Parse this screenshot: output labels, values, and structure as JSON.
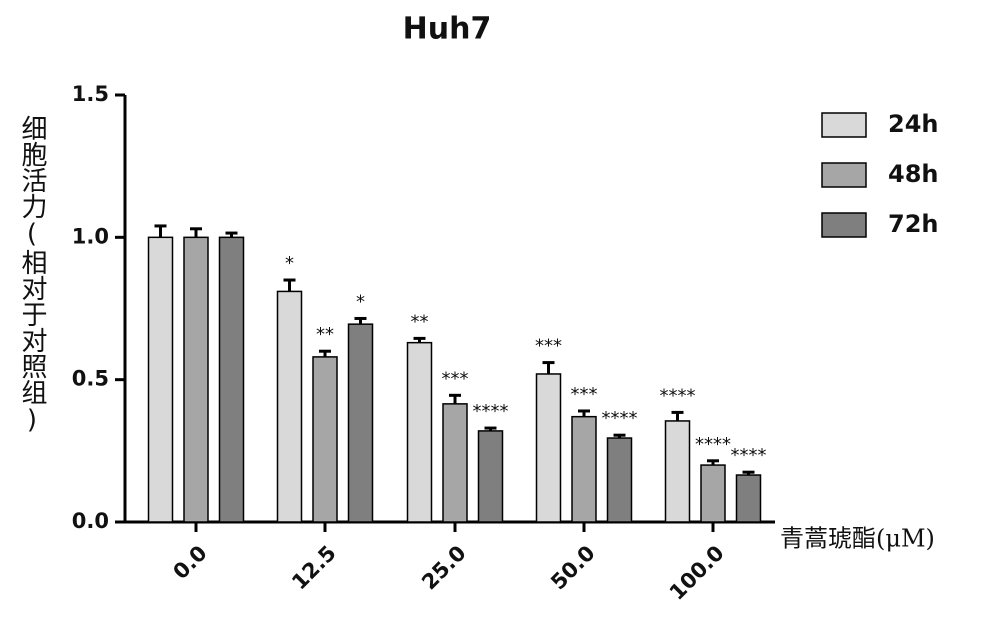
{
  "chart_data": {
    "type": "bar",
    "title": "Huh7",
    "y_label": "细胞活力(相对于对照组)",
    "x_label": "青蒿琥酯(μM)",
    "categories": [
      "0.0",
      "12.5",
      "25.0",
      "50.0",
      "100.0"
    ],
    "series": [
      {
        "name": "24h",
        "color": "#d9d9d9",
        "values": [
          1.0,
          0.81,
          0.63,
          0.52,
          0.355
        ],
        "errors": [
          0.04,
          0.04,
          0.015,
          0.04,
          0.03
        ],
        "significance": [
          null,
          "*",
          "**",
          "***",
          "****"
        ]
      },
      {
        "name": "48h",
        "color": "#a6a6a6",
        "values": [
          1.0,
          0.58,
          0.415,
          0.37,
          0.2
        ],
        "errors": [
          0.03,
          0.02,
          0.03,
          0.02,
          0.015
        ],
        "significance": [
          null,
          "**",
          "***",
          "***",
          "****"
        ]
      },
      {
        "name": "72h",
        "color": "#7f7f7f",
        "values": [
          1.0,
          0.695,
          0.32,
          0.295,
          0.165
        ],
        "errors": [
          0.015,
          0.02,
          0.01,
          0.01,
          0.01
        ],
        "significance": [
          null,
          "*",
          "****",
          "****",
          "****"
        ]
      }
    ],
    "ylim": [
      0,
      1.5
    ],
    "yticks": [
      {
        "value": 0,
        "label": "0.0"
      },
      {
        "value": 0.5,
        "label": "0.5"
      },
      {
        "value": 1,
        "label": "1.0"
      },
      {
        "value": 1.5,
        "label": "1.5"
      }
    ],
    "legend": "top-right"
  }
}
